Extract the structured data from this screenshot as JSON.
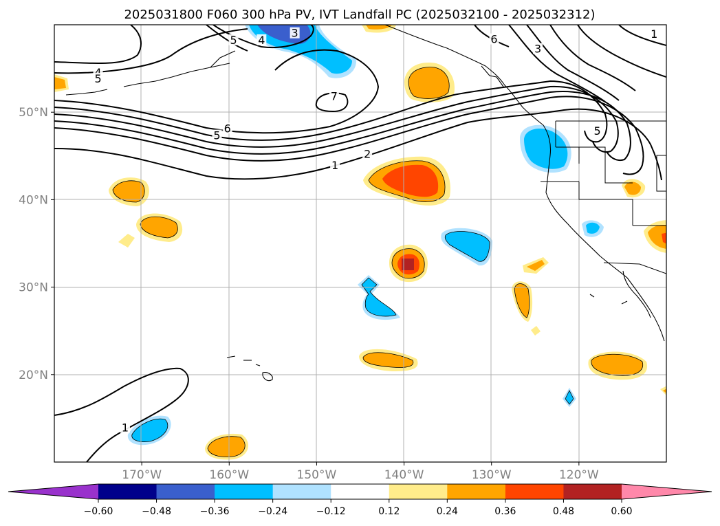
{
  "title": "2025031800 F060 300 hPa PV, IVT Landfall PC (2025032100 - 2025032312)",
  "map": {
    "projection": "PlateCarree",
    "lon_range": [
      -180,
      -110
    ],
    "lat_range": [
      10,
      60
    ],
    "gridlines": true,
    "lon_ticks": [
      {
        "value": -170,
        "label": "170°W"
      },
      {
        "value": -160,
        "label": "160°W"
      },
      {
        "value": -150,
        "label": "150°W"
      },
      {
        "value": -140,
        "label": "140°W"
      },
      {
        "value": -130,
        "label": "130°W"
      },
      {
        "value": -120,
        "label": "120°W"
      }
    ],
    "lat_ticks": [
      {
        "value": 50,
        "label": "50°N"
      },
      {
        "value": 40,
        "label": "40°N"
      },
      {
        "value": 30,
        "label": "30°N"
      },
      {
        "value": 20,
        "label": "20°N"
      }
    ]
  },
  "contour_labels": [
    {
      "text": "4",
      "lon": -175,
      "lat": 54.5
    },
    {
      "text": "5",
      "lon": -175,
      "lat": 53.8
    },
    {
      "text": "3",
      "lon": -152.5,
      "lat": 59
    },
    {
      "text": "5",
      "lon": -159.5,
      "lat": 58.2
    },
    {
      "text": "4",
      "lon": -156.3,
      "lat": 58.2
    },
    {
      "text": "7",
      "lon": -148,
      "lat": 51.8
    },
    {
      "text": "6",
      "lon": -160.2,
      "lat": 48.1
    },
    {
      "text": "5",
      "lon": -161.4,
      "lat": 47.3
    },
    {
      "text": "2",
      "lon": -144.2,
      "lat": 45.2
    },
    {
      "text": "1",
      "lon": -147.9,
      "lat": 43.9
    },
    {
      "text": "6",
      "lon": -129.7,
      "lat": 58.3
    },
    {
      "text": "3",
      "lon": -124.7,
      "lat": 57.2
    },
    {
      "text": "1",
      "lon": -111.4,
      "lat": 58.9
    },
    {
      "text": "5",
      "lon": -117.9,
      "lat": 47.8
    },
    {
      "text": "1",
      "lon": -171.9,
      "lat": 13.9
    }
  ],
  "colorbar": {
    "levels": [
      -0.6,
      -0.48,
      -0.36,
      -0.24,
      -0.12,
      0.12,
      0.24,
      0.36,
      0.48,
      0.6
    ],
    "tick_labels": [
      "−0.60",
      "−0.48",
      "−0.36",
      "−0.24",
      "−0.12",
      "0.12",
      "0.24",
      "0.36",
      "0.48",
      "0.60"
    ],
    "colors": [
      "#9932cc",
      "#00008b",
      "#3a5fcd",
      "#00bfff",
      "#b0e2ff",
      "#ffffff",
      "#ffec8b",
      "#ffa500",
      "#ff4500",
      "#b22222",
      "#ff88aa"
    ],
    "extend": "both"
  }
}
